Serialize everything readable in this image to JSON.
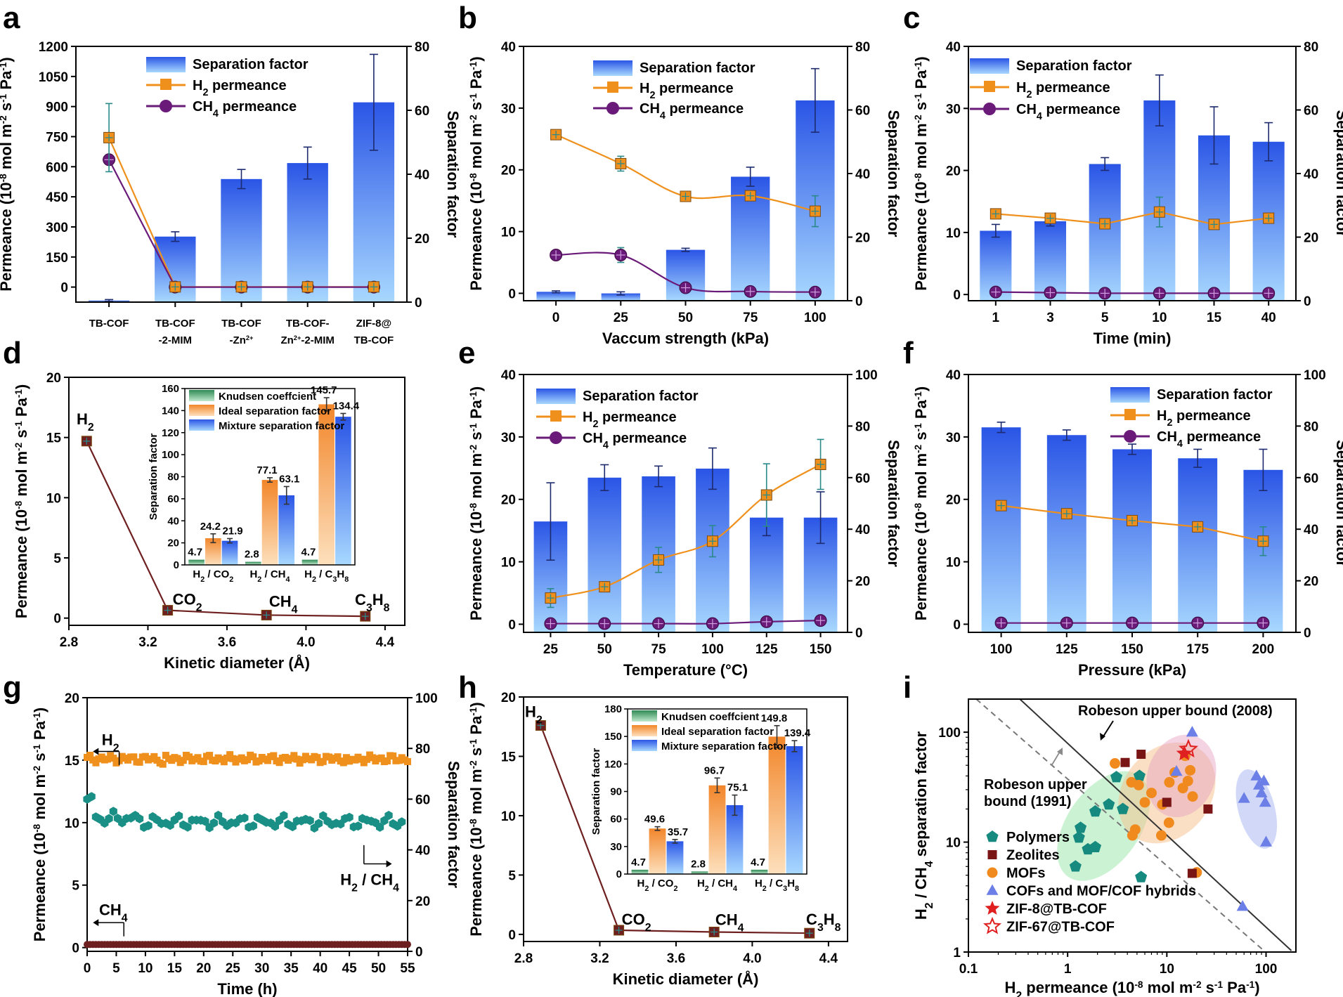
{
  "colors": {
    "bar_top": "#2a55e6",
    "bar_bottom": "#a8d8ff",
    "h2": "#f0901c",
    "ch4": "#6a1a78",
    "maroon": "#6e1f1f",
    "knudsen": "#43a46a",
    "ideal_top": "#f2862a",
    "ideal_bottom": "#fde0bd",
    "teal": "#1a8f86",
    "orange_dot": "#f08a1e",
    "cof_tri": "#6c7fe6",
    "star": "#e02020",
    "error": "#2a8a8a"
  },
  "panels": {
    "a": "a",
    "b": "b",
    "c": "c",
    "d": "d",
    "e": "e",
    "f": "f",
    "g": "g",
    "h": "h",
    "i": "i"
  },
  "labels": {
    "perm_y_prefix": "Permeance (10",
    "perm_y_exp1": "-8",
    "perm_y_mid": " mol m",
    "perm_y_exp2": "-2",
    "perm_y_s": " s",
    "perm_y_exp3": "-1",
    "perm_y_pa": " Pa",
    "perm_y_exp4": "-1",
    "perm_y_end": ")",
    "sep_factor": "Separation factor",
    "separation_factor_legend": "Separation factor",
    "h2_perm": "H",
    "h2_sub": "2",
    "ch4_perm": "CH",
    "ch4_sub": "4",
    "permeance_word": " permeance",
    "knudsen": "Knudsen coeffcient",
    "ideal": "Ideal separation factor",
    "mixture": "Mixture separation factor",
    "kinetic_diameter": "Kinetic diameter (Å)"
  },
  "chart_data": [
    {
      "id": "a",
      "type": "bar",
      "categories": [
        "TB-COF",
        "TB-COF\n-2-MIM",
        "TB-COF\n-Zn2+",
        "TB-COF-\nZn2+-2-MIM",
        "ZIF-8@\nTB-COF"
      ],
      "series": [
        {
          "name": "Separation factor",
          "values": [
            0.5,
            20.5,
            38.5,
            43.5,
            62.5
          ],
          "err": [
            0.3,
            1.5,
            3,
            5,
            15
          ]
        },
        {
          "name": "H2 permeance",
          "values": [
            745,
            1,
            1,
            1,
            1
          ],
          "err": [
            170,
            0,
            0,
            0,
            0
          ]
        },
        {
          "name": "CH4 permeance",
          "values": [
            635,
            0,
            0,
            0,
            0
          ],
          "err": [
            0,
            0,
            0,
            0,
            0
          ]
        }
      ],
      "ylim": [
        -75,
        1200
      ],
      "y2lim": [
        0,
        80
      ],
      "yticks": [
        0,
        150,
        300,
        450,
        600,
        750,
        900,
        1050,
        1200
      ],
      "y2ticks": [
        0,
        20,
        40,
        60,
        80
      ]
    },
    {
      "id": "b",
      "type": "bar",
      "xlabel": "Vaccum strength (kPa)",
      "categories": [
        "0",
        "25",
        "50",
        "75",
        "100"
      ],
      "series": [
        {
          "name": "Separation factor",
          "values": [
            2.8,
            2.3,
            16,
            39,
            63
          ],
          "err": [
            0.3,
            0.5,
            0.5,
            3,
            10
          ]
        },
        {
          "name": "H2 permeance",
          "values": [
            25.7,
            21,
            15.7,
            15.8,
            13.3
          ],
          "err": [
            0.5,
            1.2,
            0.6,
            0.8,
            2.5
          ]
        },
        {
          "name": "CH4 permeance",
          "values": [
            6.2,
            6.2,
            0.9,
            0.3,
            0.2
          ],
          "err": [
            0.4,
            1.2,
            0.2,
            0.1,
            0.1
          ]
        }
      ],
      "ylim": [
        -1.2,
        40
      ],
      "y2lim": [
        0,
        80
      ],
      "yticks": [
        0,
        10,
        20,
        30,
        40
      ],
      "y2ticks": [
        0,
        20,
        40,
        60,
        80
      ]
    },
    {
      "id": "c",
      "type": "bar",
      "xlabel": "Time (min)",
      "categories": [
        "1",
        "3",
        "5",
        "10",
        "15",
        "40"
      ],
      "series": [
        {
          "name": "Separation factor",
          "values": [
            22,
            25,
            43,
            63,
            52,
            50
          ],
          "err": [
            2,
            1.5,
            2,
            8,
            9,
            6
          ]
        },
        {
          "name": "H2 permeance",
          "values": [
            13,
            12.3,
            11.4,
            13.3,
            11.3,
            12.3
          ],
          "err": [
            0.6,
            0.5,
            0.5,
            2.4,
            0.5,
            0.6
          ]
        },
        {
          "name": "CH4 permeance",
          "values": [
            0.4,
            0.3,
            0.2,
            0.2,
            0.2,
            0.2
          ],
          "err": [
            0,
            0,
            0,
            0,
            0,
            0
          ]
        }
      ],
      "ylim": [
        -1,
        40
      ],
      "y2lim": [
        0,
        80
      ],
      "yticks": [
        0,
        10,
        20,
        30,
        40
      ],
      "y2ticks": [
        0,
        20,
        40,
        60,
        80
      ]
    },
    {
      "id": "d",
      "type": "line",
      "xlabel": "Kinetic diameter (Å)",
      "x": [
        2.89,
        3.3,
        3.8,
        4.3
      ],
      "points": [
        "H2",
        "CO2",
        "CH4",
        "C3H8"
      ],
      "values": [
        14.7,
        0.65,
        0.25,
        0.15
      ],
      "xlim": [
        2.8,
        4.5
      ],
      "ylim": [
        -0.6,
        20
      ],
      "xticks": [
        2.8,
        3.2,
        3.6,
        4.0,
        4.4
      ],
      "yticks": [
        0,
        5,
        10,
        15,
        20
      ],
      "inset": {
        "type": "bar",
        "ylabel": "Separation factor",
        "categories": [
          "H2 / CO2",
          "H2 / CH4",
          "H2 / C3H8"
        ],
        "series": [
          {
            "name": "Knudsen coeffcient",
            "values": [
              4.7,
              2.8,
              4.7
            ]
          },
          {
            "name": "Ideal separation factor",
            "values": [
              24.2,
              77.1,
              145.7
            ],
            "err": [
              4,
              2,
              6
            ]
          },
          {
            "name": "Mixture separation factor",
            "values": [
              21.9,
              63.1,
              134.4
            ],
            "err": [
              2,
              8,
              3
            ]
          }
        ],
        "ylim": [
          0,
          160
        ],
        "yticks": [
          0,
          20,
          40,
          60,
          80,
          100,
          120,
          140,
          160
        ]
      }
    },
    {
      "id": "e",
      "type": "bar",
      "xlabel": "Temperature (°C)",
      "categories": [
        "25",
        "50",
        "75",
        "100",
        "125",
        "150"
      ],
      "series": [
        {
          "name": "Separation factor",
          "values": [
            43,
            60,
            60.5,
            63.5,
            44.5,
            44.5
          ],
          "err": [
            15,
            5,
            4,
            8,
            7,
            10
          ]
        },
        {
          "name": "H2 permeance",
          "values": [
            4.2,
            6,
            10.3,
            13.3,
            20.7,
            25.6
          ],
          "err": [
            1.5,
            0.8,
            2,
            2.5,
            5,
            4
          ]
        },
        {
          "name": "CH4 permeance",
          "values": [
            0.1,
            0.1,
            0.1,
            0.1,
            0.4,
            0.6
          ],
          "err": [
            0,
            0,
            0,
            0,
            0,
            0
          ]
        }
      ],
      "ylim": [
        -1.3,
        40
      ],
      "y2lim": [
        0,
        100
      ],
      "yticks": [
        0,
        10,
        20,
        30,
        40
      ],
      "y2ticks": [
        0,
        20,
        40,
        60,
        80,
        100
      ]
    },
    {
      "id": "f",
      "type": "bar",
      "xlabel": "Pressure (kPa)",
      "categories": [
        "100",
        "125",
        "150",
        "175",
        "200"
      ],
      "series": [
        {
          "name": "Separation factor",
          "values": [
            79.5,
            76.5,
            71,
            67.5,
            63
          ],
          "err": [
            2,
            2,
            2,
            3.5,
            8
          ]
        },
        {
          "name": "H2 permeance",
          "values": [
            19,
            17.7,
            16.6,
            15.6,
            13.3
          ],
          "err": [
            0.5,
            0.5,
            0.5,
            0.5,
            2.3
          ]
        },
        {
          "name": "CH4 permeance",
          "values": [
            0.2,
            0.2,
            0.2,
            0.2,
            0.2
          ],
          "err": [
            0,
            0,
            0,
            0,
            0
          ]
        }
      ],
      "ylim": [
        -1.3,
        40
      ],
      "y2lim": [
        0,
        100
      ],
      "yticks": [
        0,
        10,
        20,
        30,
        40
      ],
      "y2ticks": [
        0,
        20,
        40,
        60,
        80,
        100
      ]
    },
    {
      "id": "g",
      "type": "scatter",
      "xlabel": "Time (h)",
      "xlim": [
        0,
        55
      ],
      "ylim": [
        -0.3,
        20
      ],
      "y2lim": [
        0,
        100
      ],
      "xticks": [
        0,
        5,
        10,
        15,
        20,
        25,
        30,
        35,
        40,
        45,
        50,
        55
      ],
      "yticks": [
        0,
        5,
        10,
        15,
        20
      ],
      "y2ticks": [
        0,
        20,
        40,
        60,
        80,
        100
      ],
      "h2_level": 15.1,
      "ch4_level": 0.25,
      "sep_start": [
        60,
        61,
        53,
        52
      ],
      "sep_level": 51,
      "annotations": [
        "H2",
        "CH4",
        "H2 / CH4"
      ]
    },
    {
      "id": "h",
      "type": "line",
      "xlabel": "Kinetic diameter (Å)",
      "x": [
        2.89,
        3.3,
        3.8,
        4.3
      ],
      "points": [
        "H2",
        "CO2",
        "CH4",
        "C3H8"
      ],
      "values": [
        17.6,
        0.35,
        0.2,
        0.1
      ],
      "xlim": [
        2.8,
        4.5
      ],
      "ylim": [
        -0.6,
        20
      ],
      "xticks": [
        2.8,
        3.2,
        3.6,
        4.0,
        4.4
      ],
      "yticks": [
        0,
        5,
        10,
        15,
        20
      ],
      "inset": {
        "type": "bar",
        "ylabel": "Separation factor",
        "categories": [
          "H2 / CO2",
          "H2 / CH4",
          "H2 / C3H8"
        ],
        "series": [
          {
            "name": "Knudsen coeffcient",
            "values": [
              4.7,
              2.8,
              4.7
            ]
          },
          {
            "name": "Ideal separation factor",
            "values": [
              49.6,
              96.7,
              149.8
            ],
            "err": [
              2,
              8,
              12
            ]
          },
          {
            "name": "Mixture separation factor",
            "values": [
              35.7,
              75.1,
              139.4
            ],
            "err": [
              2,
              11,
              6
            ]
          }
        ],
        "ylim": [
          0,
          180
        ],
        "yticks": [
          0,
          30,
          60,
          90,
          120,
          150,
          180
        ]
      }
    },
    {
      "id": "i",
      "type": "scatter",
      "xlabel": "H2 permeance (10-8 mol m-2 s-1 Pa-1)",
      "ylabel": "H2 / CH4 separation factor",
      "xscale": "log",
      "yscale": "log",
      "xlim": [
        0.1,
        200
      ],
      "ylim": [
        1,
        200
      ],
      "xticks": [
        0.1,
        1,
        10,
        100
      ],
      "yticks": [
        1,
        10,
        100
      ],
      "annotations": [
        "Robeson upper bound (2008)",
        "Robeson upper\nbound (1991)"
      ],
      "series": [
        {
          "name": "Polymers",
          "points": [
            [
              1.3,
              11
            ],
            [
              1.35,
              13.5
            ],
            [
              1.2,
              6
            ],
            [
              1.6,
              8.6
            ],
            [
              1.9,
              9
            ],
            [
              2.6,
              22
            ],
            [
              3.1,
              39
            ],
            [
              3.6,
              20
            ],
            [
              5.3,
              40
            ],
            [
              5.5,
              4.8
            ],
            [
              1.9,
              19
            ]
          ]
        },
        {
          "name": "Zeolites",
          "points": [
            [
              3.8,
              53
            ],
            [
              5.5,
              63
            ],
            [
              10,
              23
            ],
            [
              26,
              20
            ],
            [
              18,
              5.2
            ]
          ]
        },
        {
          "name": "MOFs",
          "points": [
            [
              3,
              52
            ],
            [
              4.4,
              35
            ],
            [
              5.2,
              33
            ],
            [
              6,
              23
            ],
            [
              7,
              28
            ],
            [
              9,
              22
            ],
            [
              10.5,
              15
            ],
            [
              4.8,
              13
            ],
            [
              4.5,
              11.5
            ],
            [
              8.8,
              11.5
            ],
            [
              10.6,
              35
            ],
            [
              12,
              43
            ],
            [
              14.5,
              31
            ],
            [
              15.3,
              61
            ],
            [
              16.3,
              36
            ],
            [
              18.2,
              26
            ],
            [
              17.2,
              45
            ],
            [
              20,
              5.3
            ]
          ]
        },
        {
          "name": "COFs and MOF/COF hybrids",
          "points": [
            [
              18,
              100
            ],
            [
              12.5,
              44
            ],
            [
              60,
              25
            ],
            [
              80,
              40
            ],
            [
              85,
              33
            ],
            [
              90,
              28
            ],
            [
              95,
              36
            ],
            [
              98,
              23
            ],
            [
              100,
              10
            ],
            [
              58,
              2.6
            ]
          ]
        },
        {
          "name": "ZIF-8@TB-COF",
          "points": [
            [
              15,
              64
            ]
          ]
        },
        {
          "name": "ZIF-67@TB-COF",
          "points": [
            [
              16.5,
              70
            ]
          ]
        }
      ]
    }
  ]
}
